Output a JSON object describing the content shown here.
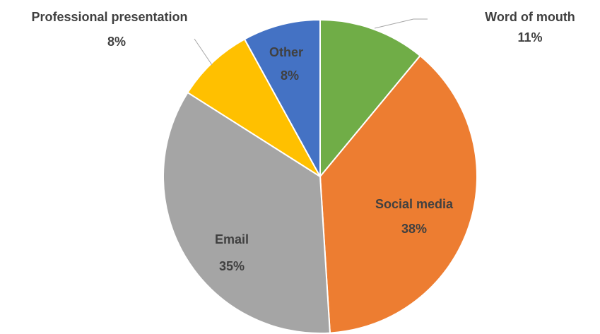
{
  "chart_data": {
    "type": "pie",
    "categories": [
      "Word of mouth",
      "Social media",
      "Email",
      "Professional presentation",
      "Other"
    ],
    "values": [
      11,
      38,
      35,
      8,
      8
    ],
    "value_labels": [
      "11%",
      "38%",
      "35%",
      "8%",
      "8%"
    ],
    "colors": [
      "#70ad47",
      "#ed7d31",
      "#a5a5a5",
      "#ffc000",
      "#4472c4"
    ]
  }
}
